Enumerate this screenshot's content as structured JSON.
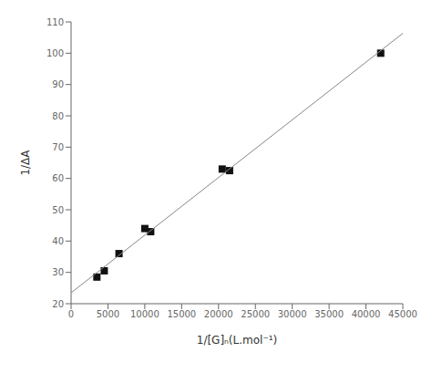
{
  "chart_data": {
    "type": "scatter",
    "xlabel": "1/[G]ₙ(L.mol⁻¹)",
    "ylabel": "1/ΔA",
    "xlim": [
      0,
      45000
    ],
    "ylim": [
      20,
      110
    ],
    "xticks": [
      0,
      5000,
      10000,
      15000,
      20000,
      25000,
      30000,
      35000,
      40000,
      45000
    ],
    "yticks": [
      20,
      30,
      40,
      50,
      60,
      70,
      80,
      90,
      100,
      110
    ],
    "grid": false,
    "series": [
      {
        "type": "scatter",
        "marker": "square",
        "color": "#111111",
        "x": [
          3500,
          4500,
          6500,
          10000,
          10800,
          20500,
          21500,
          42000
        ],
        "values": [
          28.5,
          30.5,
          36.0,
          44.0,
          43.0,
          63.0,
          62.5,
          100.0
        ]
      },
      {
        "type": "line",
        "line_style": "solid",
        "color": "#888888",
        "x": [
          0,
          45000
        ],
        "values": [
          23.4784,
          106.339
        ]
      }
    ]
  }
}
